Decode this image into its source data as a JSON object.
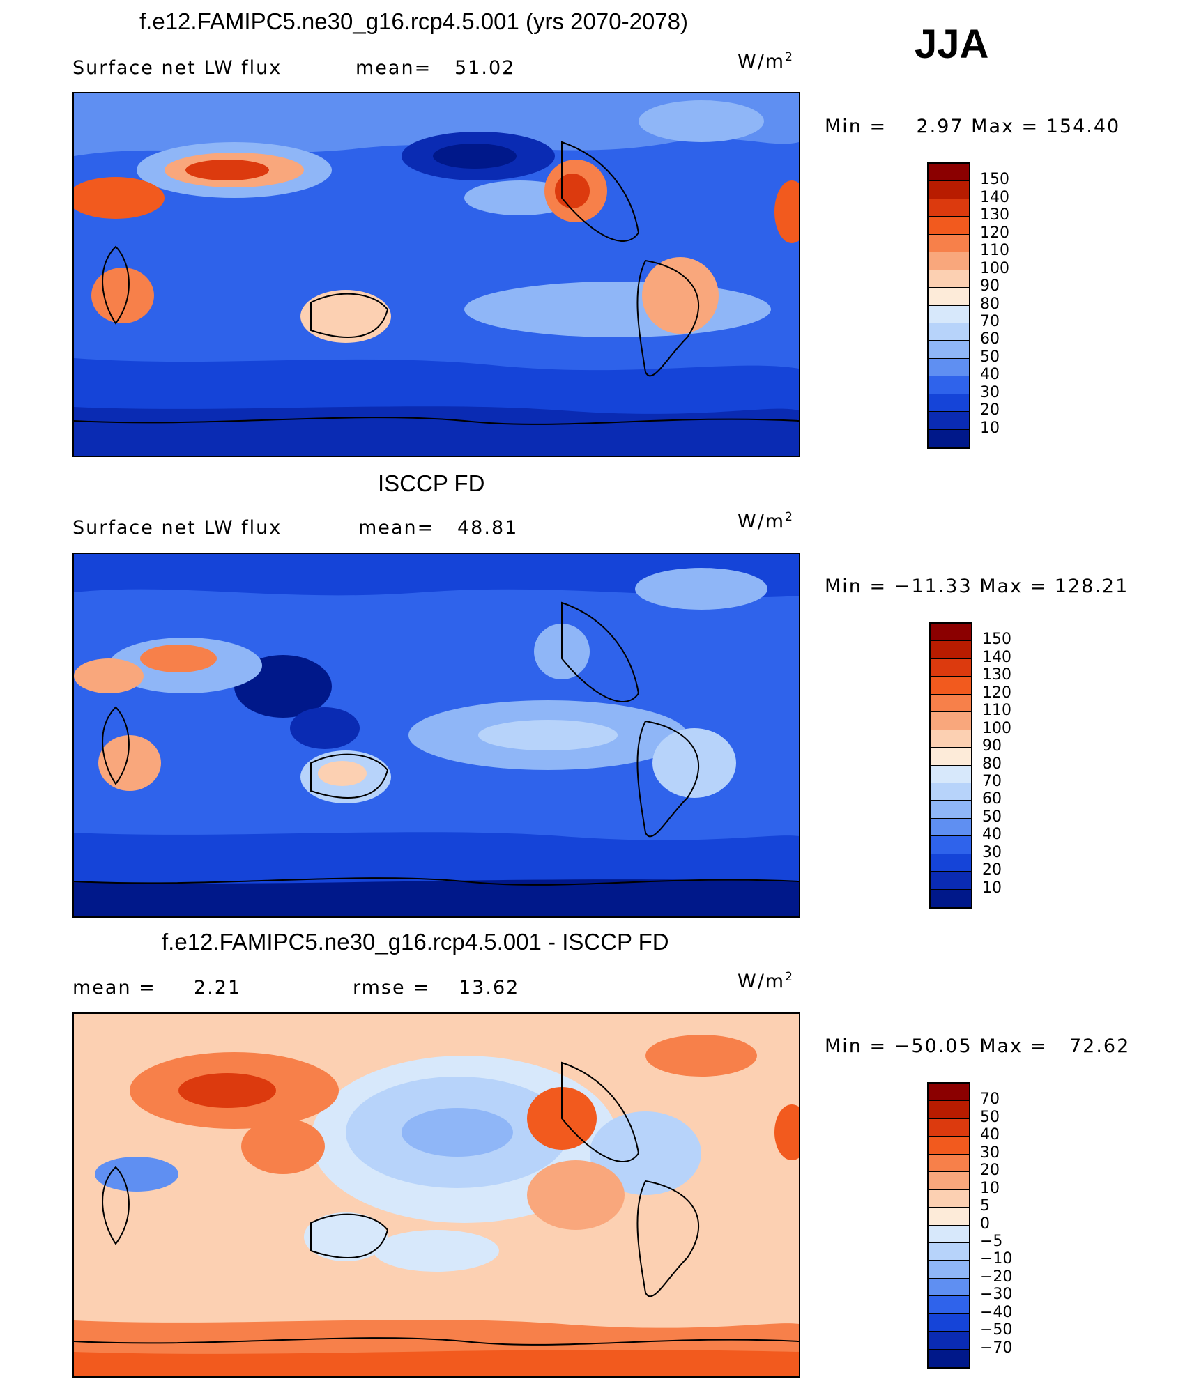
{
  "season": "JJA",
  "unit_text": "W/m",
  "unit_sup": "2",
  "panels": [
    {
      "title": "f.e12.FAMIPC5.ne30_g16.rcp4.5.001 (yrs 2070-2078)",
      "left_label": "Surface net LW flux",
      "mid_label": "mean=",
      "mid_value": "51.02",
      "minmax": "Min =    2.97 Max = 154.40",
      "ticks": [
        "150",
        "140",
        "130",
        "120",
        "110",
        "100",
        "90",
        "80",
        "70",
        "60",
        "50",
        "40",
        "30",
        "20",
        "10"
      ]
    },
    {
      "title": "ISCCP FD",
      "left_label": "Surface net LW flux",
      "mid_label": "mean=",
      "mid_value": "48.81",
      "minmax": "Min = −11.33 Max = 128.21",
      "ticks": [
        "150",
        "140",
        "130",
        "120",
        "110",
        "100",
        "90",
        "80",
        "70",
        "60",
        "50",
        "40",
        "30",
        "20",
        "10"
      ]
    },
    {
      "title": "f.e12.FAMIPC5.ne30_g16.rcp4.5.001 - ISCCP FD",
      "left_label": "mean =",
      "left_value": "2.21",
      "mid_label": "rmse =",
      "mid_value": "13.62",
      "minmax": "Min = −50.05 Max =   72.62",
      "ticks": [
        "70",
        "50",
        "40",
        "30",
        "20",
        "10",
        "5",
        "0",
        "−5",
        "−10",
        "−20",
        "−30",
        "−40",
        "−50",
        "−70"
      ]
    }
  ],
  "colors": {
    "scale": [
      "#8b0000",
      "#b81c00",
      "#dc3a0e",
      "#f25a1e",
      "#f7804a",
      "#f9a77c",
      "#fcd0b2",
      "#fdebd9",
      "#d7e8fb",
      "#b7d3fa",
      "#8fb6f7",
      "#5f8ff2",
      "#2f63eb",
      "#1544d8",
      "#0a2bb3",
      "#00188a"
    ]
  }
}
